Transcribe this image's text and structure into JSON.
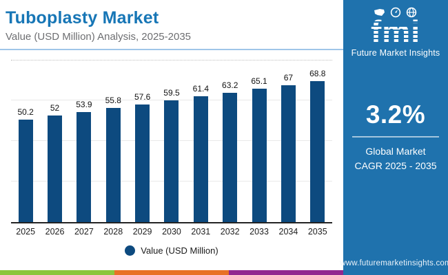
{
  "header": {
    "title": "Tuboplasty Market",
    "subtitle": "Value (USD Million) Analysis, 2025-2035"
  },
  "logo": {
    "wordmark": "fmi",
    "tagline": "Future Market Insights",
    "icons": [
      "us-map-icon",
      "compass-icon",
      "globe-icon"
    ]
  },
  "sidebar": {
    "cagr_value": "3.2%",
    "cagr_caption_line1": "Global Market",
    "cagr_caption_line2": "CAGR 2025 - 2035",
    "website": "www.futuremarketinsights.com",
    "background_color": "#1F72AD"
  },
  "legend": {
    "label": "Value (USD Million)",
    "marker_color": "#0D4A7F"
  },
  "colors": {
    "title_blue": "#1776B6",
    "subtitle_gray": "#6D6E71",
    "separator_blue": "#9FC5E8",
    "bar_navy": "#0D4A7F",
    "gridline": "#E8E8E8",
    "axis": "#222222",
    "strip_green": "#8CC63E",
    "strip_orange": "#E87126",
    "strip_purple": "#92278F"
  },
  "chart_data": {
    "type": "bar",
    "categories": [
      "2025",
      "2026",
      "2027",
      "2028",
      "2029",
      "2030",
      "2031",
      "2032",
      "2033",
      "2034",
      "2035"
    ],
    "values": [
      50.2,
      52,
      53.9,
      55.8,
      57.6,
      59.5,
      61.4,
      63.2,
      65.1,
      67,
      68.8
    ],
    "data_labels": [
      "50.2",
      "52",
      "53.9",
      "55.8",
      "57.6",
      "59.5",
      "61.4",
      "63.2",
      "65.1",
      "67",
      "68.8"
    ],
    "title": "Tuboplasty Market",
    "subtitle": "Value (USD Million) Analysis, 2025-2035",
    "xlabel": "",
    "ylabel": "Value (USD Million)",
    "ylim": [
      0,
      80
    ],
    "grid": "horizontal",
    "gridline_interval": 20,
    "y_axis_labels_visible": false,
    "legend_position": "bottom",
    "bar_color": "#0D4A7F"
  }
}
